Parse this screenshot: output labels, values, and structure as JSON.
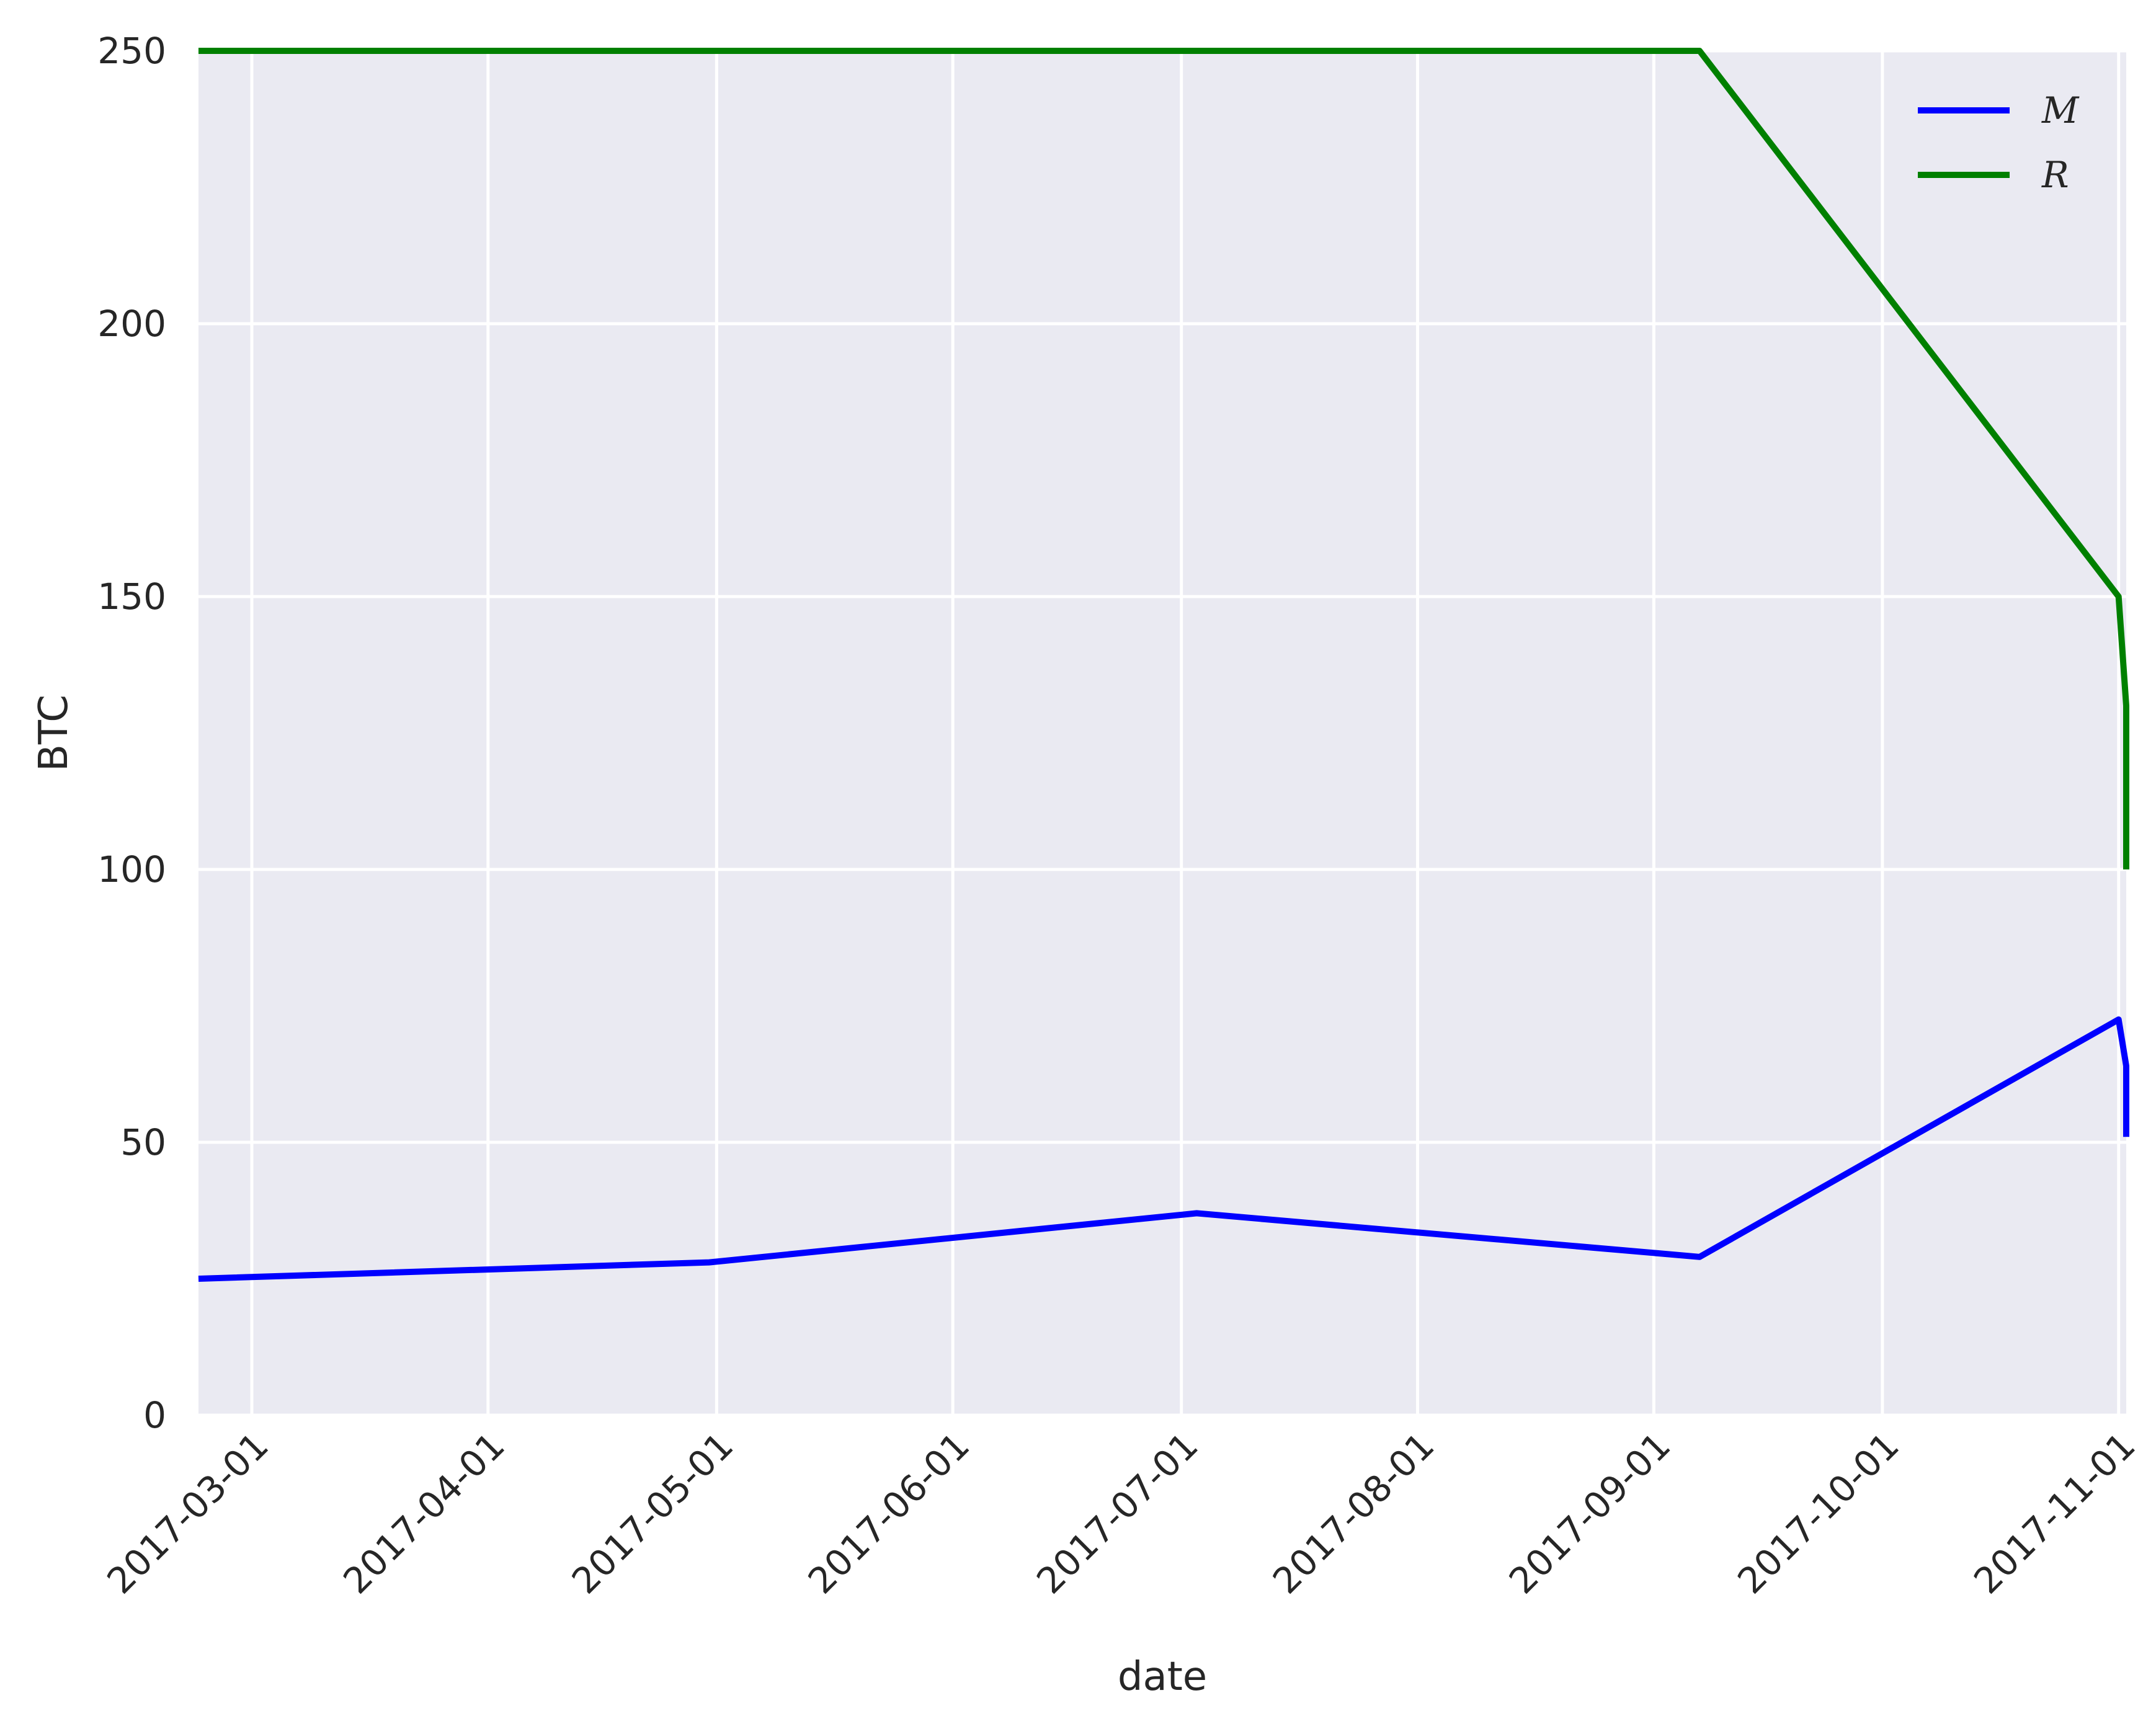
{
  "chart_data": {
    "type": "line",
    "xlabel": "date",
    "ylabel": "BTC",
    "ylim": [
      0,
      250
    ],
    "xlim": [
      "2017-02-22",
      "2017-11-02"
    ],
    "x_ticks": [
      "2017-03-01",
      "2017-04-01",
      "2017-05-01",
      "2017-06-01",
      "2017-07-01",
      "2017-08-01",
      "2017-09-01",
      "2017-10-01",
      "2017-11-01"
    ],
    "y_ticks": [
      0,
      50,
      100,
      150,
      200,
      250
    ],
    "grid": true,
    "legend_position": "top-right",
    "series": [
      {
        "name": "M",
        "color": "#0000ff",
        "points": [
          {
            "x": "2017-02-22",
            "y": 25
          },
          {
            "x": "2017-04-30",
            "y": 28
          },
          {
            "x": "2017-07-03",
            "y": 37
          },
          {
            "x": "2017-09-07",
            "y": 29
          },
          {
            "x": "2017-11-01",
            "y": 72.5
          },
          {
            "x": "2017-11-02",
            "y": 64
          },
          {
            "x": "2017-11-02",
            "y": 51
          }
        ]
      },
      {
        "name": "R",
        "color": "#008000",
        "points": [
          {
            "x": "2017-02-22",
            "y": 250
          },
          {
            "x": "2017-09-07",
            "y": 250
          },
          {
            "x": "2017-11-01",
            "y": 150
          },
          {
            "x": "2017-11-02",
            "y": 130
          },
          {
            "x": "2017-11-02",
            "y": 100
          }
        ]
      }
    ]
  }
}
